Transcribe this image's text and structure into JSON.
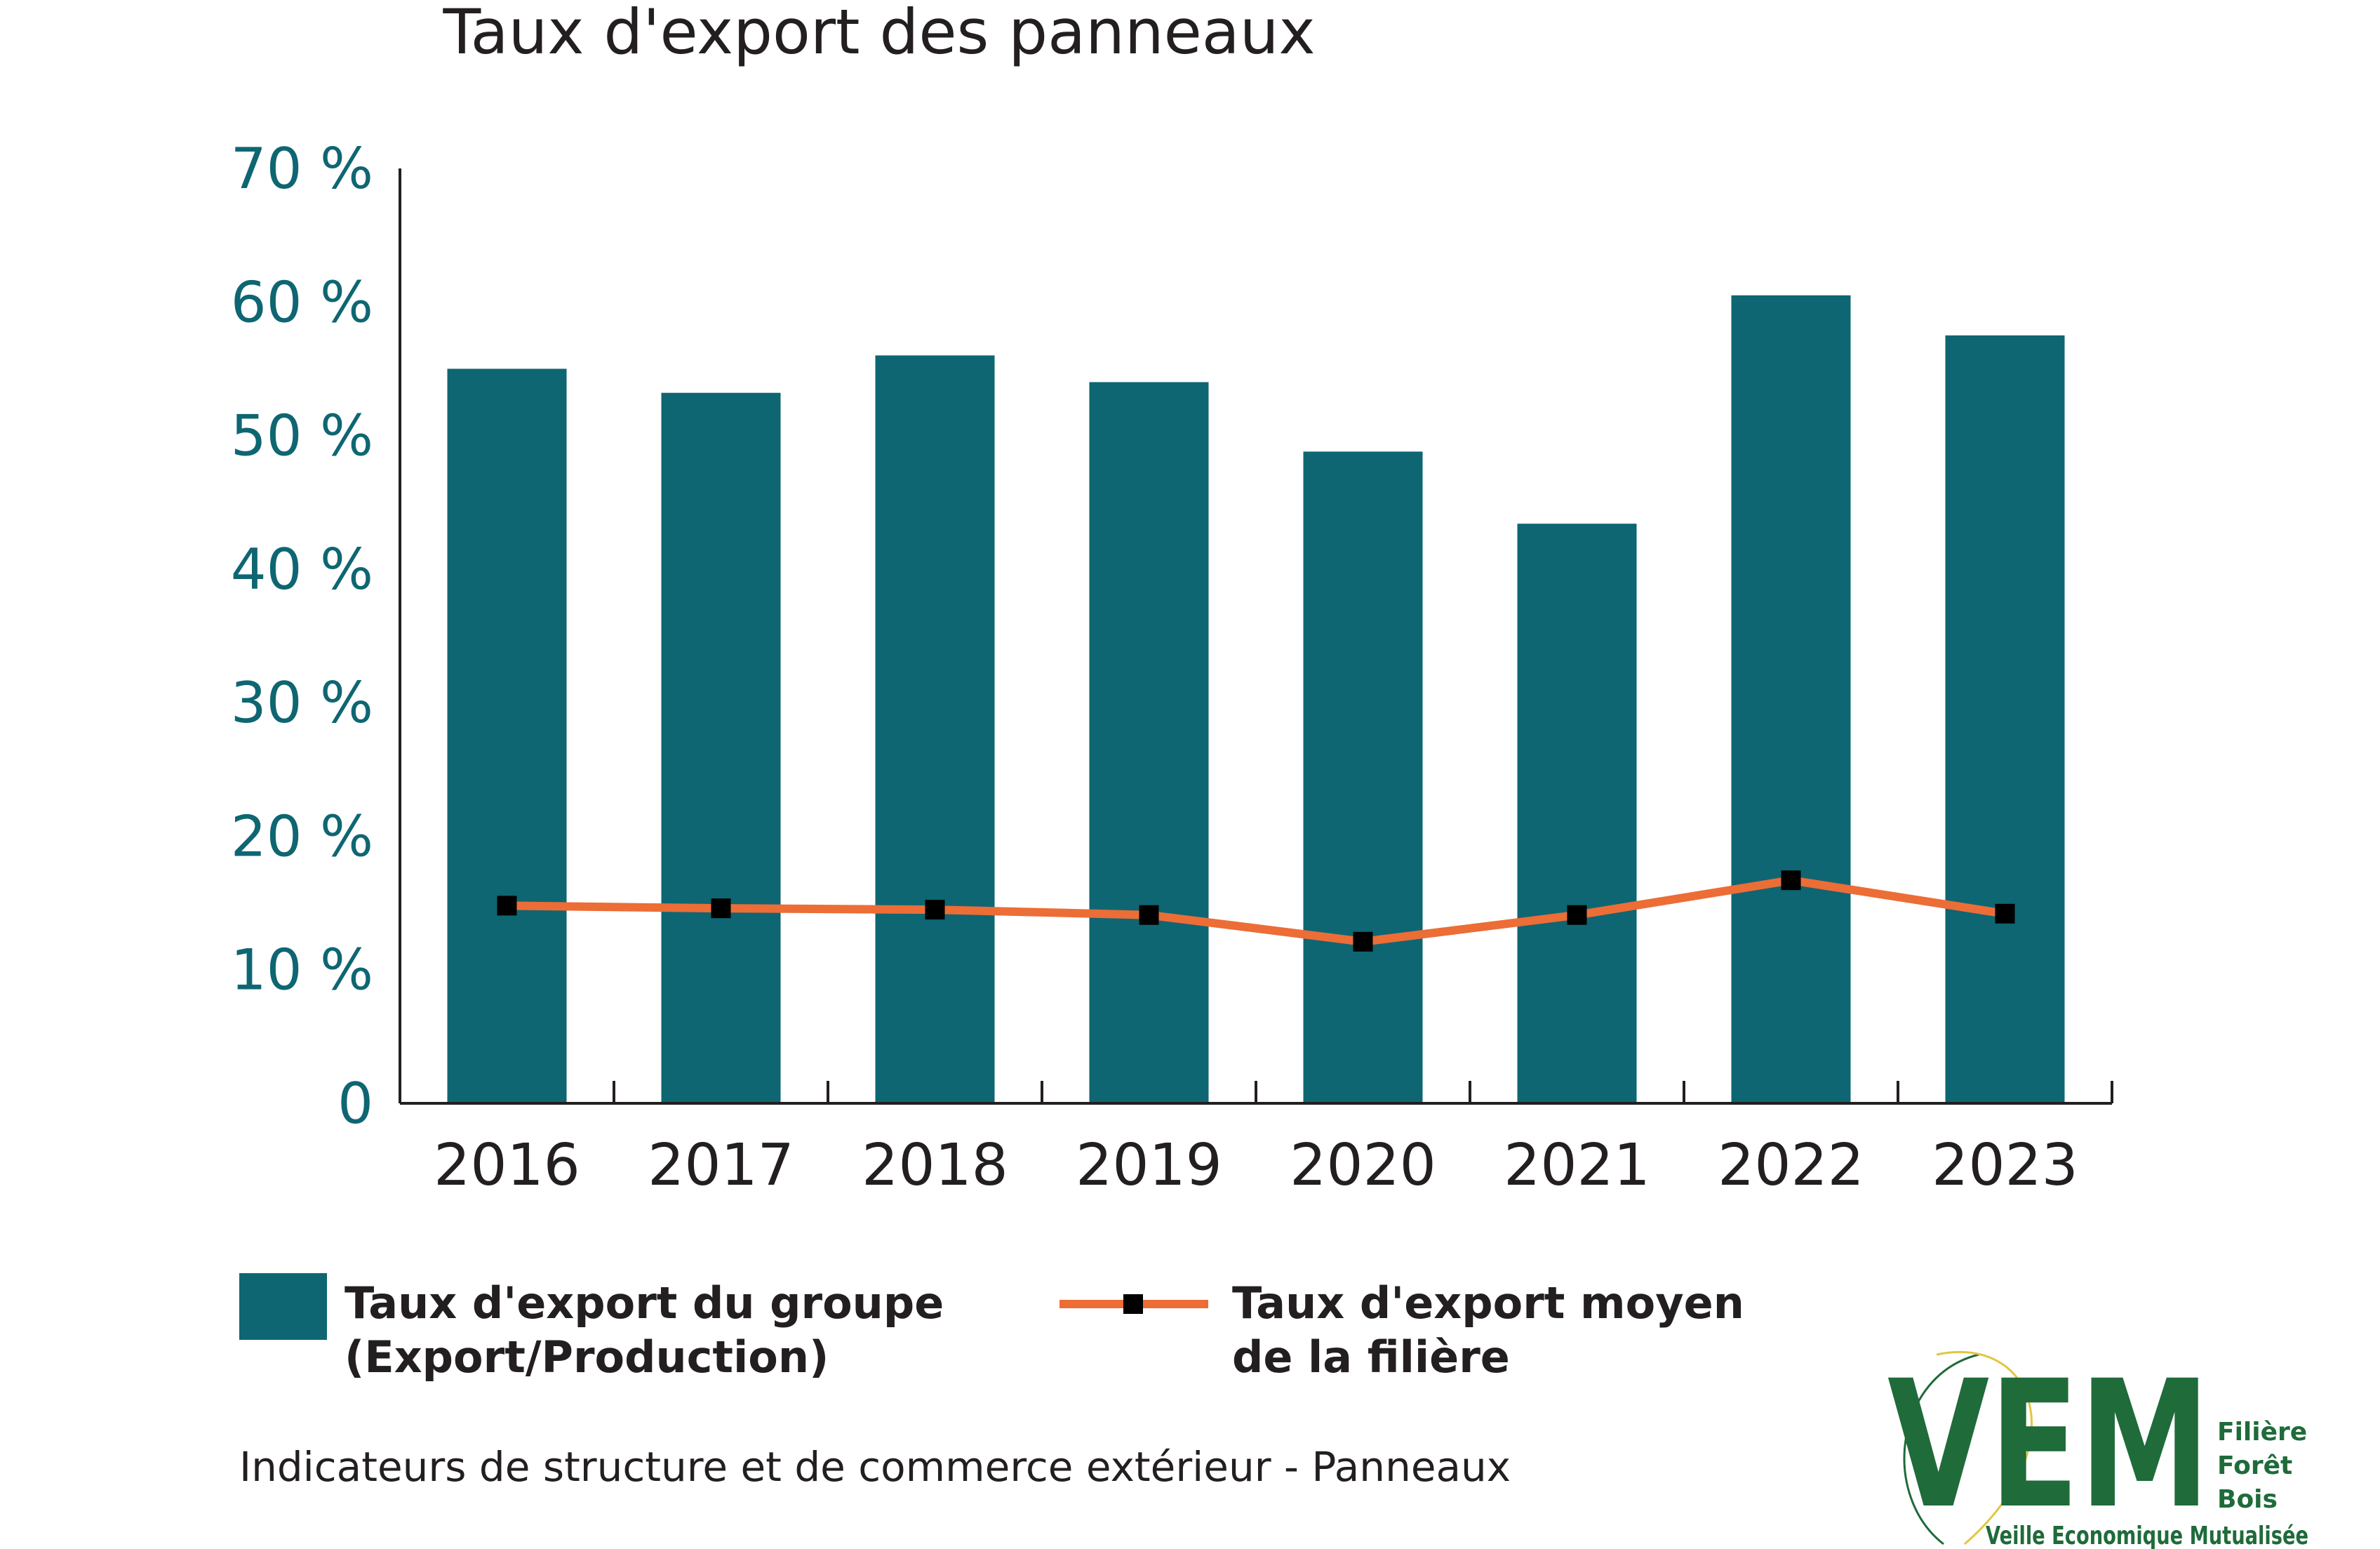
{
  "chart_data": {
    "type": "bar",
    "title": "Taux d'export des panneaux",
    "xlabel": "",
    "ylabel": "",
    "ylim": [
      0,
      70
    ],
    "yticks": [
      0,
      10,
      20,
      30,
      40,
      50,
      60,
      70
    ],
    "ytick_labels": [
      "0",
      "10 %",
      "20 %",
      "30 %",
      "40 %",
      "50 %",
      "60 %",
      "70 %"
    ],
    "categories": [
      "2016",
      "2017",
      "2018",
      "2019",
      "2020",
      "2021",
      "2022",
      "2023"
    ],
    "series": [
      {
        "name": "Taux d'export du groupe (Export/Production)",
        "label_lines": [
          "Taux d'export du groupe",
          "(Export/Production)"
        ],
        "type": "bar",
        "color": "#0e6672",
        "values": [
          55,
          53.2,
          56,
          54,
          48.8,
          43.4,
          60.5,
          57.5
        ]
      },
      {
        "name": "Taux d'export moyen de la filière",
        "label_lines": [
          "Taux d'export moyen",
          "de la filière"
        ],
        "type": "line",
        "color": "#ec6d36",
        "marker_color": "#000000",
        "values": [
          14.8,
          14.6,
          14.5,
          14.1,
          12.1,
          14.1,
          16.7,
          14.2
        ]
      }
    ],
    "legend_position": "bottom",
    "caption": "Indicateurs de structure et de commerce extérieur - Panneaux"
  },
  "colors": {
    "axis_label": "#0e6672",
    "text": "#231f20",
    "logo_green": "#1f6b3a",
    "logo_yellow": "#e3c640"
  },
  "logo": {
    "letters": "VEM",
    "line1": "Filière",
    "line2": "Forêt",
    "line3": "Bois",
    "subtitle": "Veille Economique Mutualisée"
  }
}
